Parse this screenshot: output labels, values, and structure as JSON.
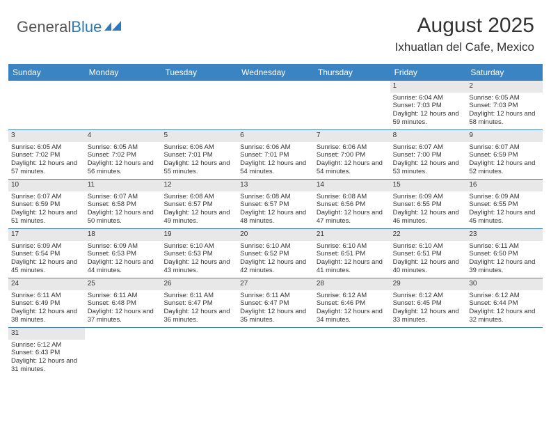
{
  "logo": {
    "word1": "General",
    "word2": "Blue"
  },
  "title": "August 2025",
  "location": "Ixhuatlan del Cafe, Mexico",
  "colors": {
    "header_bg": "#3b84c4",
    "header_text": "#ffffff",
    "day_num_bg": "#e8e8e8",
    "row_border": "#3b84c4",
    "logo_gray": "#555555",
    "logo_blue": "#2a7ac0",
    "text": "#333333",
    "background": "#ffffff"
  },
  "typography": {
    "title_fontsize": 30,
    "location_fontsize": 17,
    "logo_fontsize": 22,
    "day_header_fontsize": 12,
    "cell_fontsize": 9.5
  },
  "day_names": [
    "Sunday",
    "Monday",
    "Tuesday",
    "Wednesday",
    "Thursday",
    "Friday",
    "Saturday"
  ],
  "weeks": [
    [
      null,
      null,
      null,
      null,
      null,
      {
        "n": "1",
        "sunrise": "Sunrise: 6:04 AM",
        "sunset": "Sunset: 7:03 PM",
        "daylight": "Daylight: 12 hours and 59 minutes."
      },
      {
        "n": "2",
        "sunrise": "Sunrise: 6:05 AM",
        "sunset": "Sunset: 7:03 PM",
        "daylight": "Daylight: 12 hours and 58 minutes."
      }
    ],
    [
      {
        "n": "3",
        "sunrise": "Sunrise: 6:05 AM",
        "sunset": "Sunset: 7:02 PM",
        "daylight": "Daylight: 12 hours and 57 minutes."
      },
      {
        "n": "4",
        "sunrise": "Sunrise: 6:05 AM",
        "sunset": "Sunset: 7:02 PM",
        "daylight": "Daylight: 12 hours and 56 minutes."
      },
      {
        "n": "5",
        "sunrise": "Sunrise: 6:06 AM",
        "sunset": "Sunset: 7:01 PM",
        "daylight": "Daylight: 12 hours and 55 minutes."
      },
      {
        "n": "6",
        "sunrise": "Sunrise: 6:06 AM",
        "sunset": "Sunset: 7:01 PM",
        "daylight": "Daylight: 12 hours and 54 minutes."
      },
      {
        "n": "7",
        "sunrise": "Sunrise: 6:06 AM",
        "sunset": "Sunset: 7:00 PM",
        "daylight": "Daylight: 12 hours and 54 minutes."
      },
      {
        "n": "8",
        "sunrise": "Sunrise: 6:07 AM",
        "sunset": "Sunset: 7:00 PM",
        "daylight": "Daylight: 12 hours and 53 minutes."
      },
      {
        "n": "9",
        "sunrise": "Sunrise: 6:07 AM",
        "sunset": "Sunset: 6:59 PM",
        "daylight": "Daylight: 12 hours and 52 minutes."
      }
    ],
    [
      {
        "n": "10",
        "sunrise": "Sunrise: 6:07 AM",
        "sunset": "Sunset: 6:59 PM",
        "daylight": "Daylight: 12 hours and 51 minutes."
      },
      {
        "n": "11",
        "sunrise": "Sunrise: 6:07 AM",
        "sunset": "Sunset: 6:58 PM",
        "daylight": "Daylight: 12 hours and 50 minutes."
      },
      {
        "n": "12",
        "sunrise": "Sunrise: 6:08 AM",
        "sunset": "Sunset: 6:57 PM",
        "daylight": "Daylight: 12 hours and 49 minutes."
      },
      {
        "n": "13",
        "sunrise": "Sunrise: 6:08 AM",
        "sunset": "Sunset: 6:57 PM",
        "daylight": "Daylight: 12 hours and 48 minutes."
      },
      {
        "n": "14",
        "sunrise": "Sunrise: 6:08 AM",
        "sunset": "Sunset: 6:56 PM",
        "daylight": "Daylight: 12 hours and 47 minutes."
      },
      {
        "n": "15",
        "sunrise": "Sunrise: 6:09 AM",
        "sunset": "Sunset: 6:55 PM",
        "daylight": "Daylight: 12 hours and 46 minutes."
      },
      {
        "n": "16",
        "sunrise": "Sunrise: 6:09 AM",
        "sunset": "Sunset: 6:55 PM",
        "daylight": "Daylight: 12 hours and 45 minutes."
      }
    ],
    [
      {
        "n": "17",
        "sunrise": "Sunrise: 6:09 AM",
        "sunset": "Sunset: 6:54 PM",
        "daylight": "Daylight: 12 hours and 45 minutes."
      },
      {
        "n": "18",
        "sunrise": "Sunrise: 6:09 AM",
        "sunset": "Sunset: 6:53 PM",
        "daylight": "Daylight: 12 hours and 44 minutes."
      },
      {
        "n": "19",
        "sunrise": "Sunrise: 6:10 AM",
        "sunset": "Sunset: 6:53 PM",
        "daylight": "Daylight: 12 hours and 43 minutes."
      },
      {
        "n": "20",
        "sunrise": "Sunrise: 6:10 AM",
        "sunset": "Sunset: 6:52 PM",
        "daylight": "Daylight: 12 hours and 42 minutes."
      },
      {
        "n": "21",
        "sunrise": "Sunrise: 6:10 AM",
        "sunset": "Sunset: 6:51 PM",
        "daylight": "Daylight: 12 hours and 41 minutes."
      },
      {
        "n": "22",
        "sunrise": "Sunrise: 6:10 AM",
        "sunset": "Sunset: 6:51 PM",
        "daylight": "Daylight: 12 hours and 40 minutes."
      },
      {
        "n": "23",
        "sunrise": "Sunrise: 6:11 AM",
        "sunset": "Sunset: 6:50 PM",
        "daylight": "Daylight: 12 hours and 39 minutes."
      }
    ],
    [
      {
        "n": "24",
        "sunrise": "Sunrise: 6:11 AM",
        "sunset": "Sunset: 6:49 PM",
        "daylight": "Daylight: 12 hours and 38 minutes."
      },
      {
        "n": "25",
        "sunrise": "Sunrise: 6:11 AM",
        "sunset": "Sunset: 6:48 PM",
        "daylight": "Daylight: 12 hours and 37 minutes."
      },
      {
        "n": "26",
        "sunrise": "Sunrise: 6:11 AM",
        "sunset": "Sunset: 6:47 PM",
        "daylight": "Daylight: 12 hours and 36 minutes."
      },
      {
        "n": "27",
        "sunrise": "Sunrise: 6:11 AM",
        "sunset": "Sunset: 6:47 PM",
        "daylight": "Daylight: 12 hours and 35 minutes."
      },
      {
        "n": "28",
        "sunrise": "Sunrise: 6:12 AM",
        "sunset": "Sunset: 6:46 PM",
        "daylight": "Daylight: 12 hours and 34 minutes."
      },
      {
        "n": "29",
        "sunrise": "Sunrise: 6:12 AM",
        "sunset": "Sunset: 6:45 PM",
        "daylight": "Daylight: 12 hours and 33 minutes."
      },
      {
        "n": "30",
        "sunrise": "Sunrise: 6:12 AM",
        "sunset": "Sunset: 6:44 PM",
        "daylight": "Daylight: 12 hours and 32 minutes."
      }
    ],
    [
      {
        "n": "31",
        "sunrise": "Sunrise: 6:12 AM",
        "sunset": "Sunset: 6:43 PM",
        "daylight": "Daylight: 12 hours and 31 minutes."
      },
      null,
      null,
      null,
      null,
      null,
      null
    ]
  ]
}
